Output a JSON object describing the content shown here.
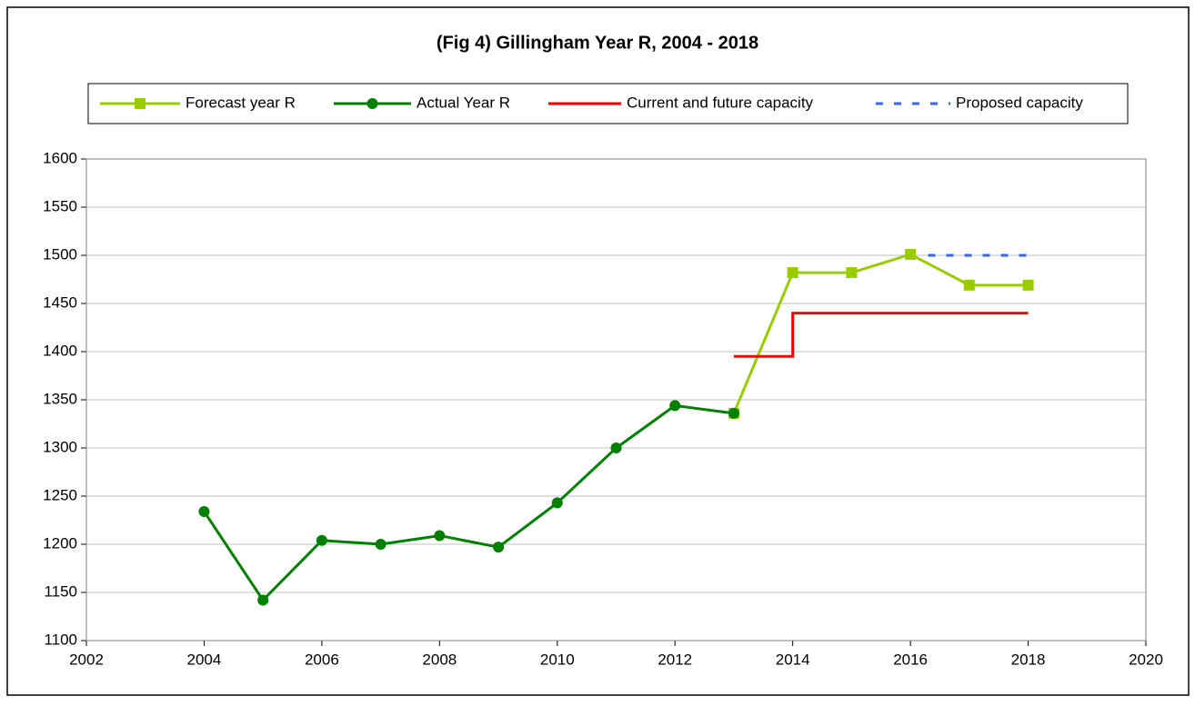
{
  "chart_data": {
    "type": "line",
    "title": "(Fig 4) Gillingham Year R,  2004 - 2018",
    "xlim": [
      2002,
      2020
    ],
    "xticks": [
      2002,
      2004,
      2006,
      2008,
      2010,
      2012,
      2014,
      2016,
      2018,
      2020
    ],
    "ylim": [
      1100,
      1600
    ],
    "yticks": [
      1100,
      1150,
      1200,
      1250,
      1300,
      1350,
      1400,
      1450,
      1500,
      1550,
      1600
    ],
    "grid": true,
    "legend": "top",
    "series": [
      {
        "name": "Forecast year R",
        "color": "#99cc00",
        "marker": "square",
        "dash": false,
        "x": [
          2013,
          2014,
          2015,
          2016,
          2017,
          2018
        ],
        "values": [
          1336,
          1482,
          1482,
          1501,
          1469,
          1469
        ]
      },
      {
        "name": "Actual Year R",
        "color": "#008000",
        "marker": "circle",
        "dash": false,
        "x": [
          2004,
          2005,
          2006,
          2007,
          2008,
          2009,
          2010,
          2011,
          2012,
          2013
        ],
        "values": [
          1234,
          1142,
          1204,
          1200,
          1209,
          1197,
          1243,
          1300,
          1344,
          1336
        ]
      },
      {
        "name": "Current and future capacity",
        "color": "#ff0000",
        "marker": "none",
        "dash": false,
        "x": [
          2013,
          2014,
          2014,
          2018
        ],
        "values": [
          1395,
          1395,
          1440,
          1440
        ]
      },
      {
        "name": "Proposed capacity",
        "color": "#3366ff",
        "marker": "none",
        "dash": true,
        "x": [
          2016.3,
          2018
        ],
        "values": [
          1500,
          1500
        ]
      }
    ]
  }
}
